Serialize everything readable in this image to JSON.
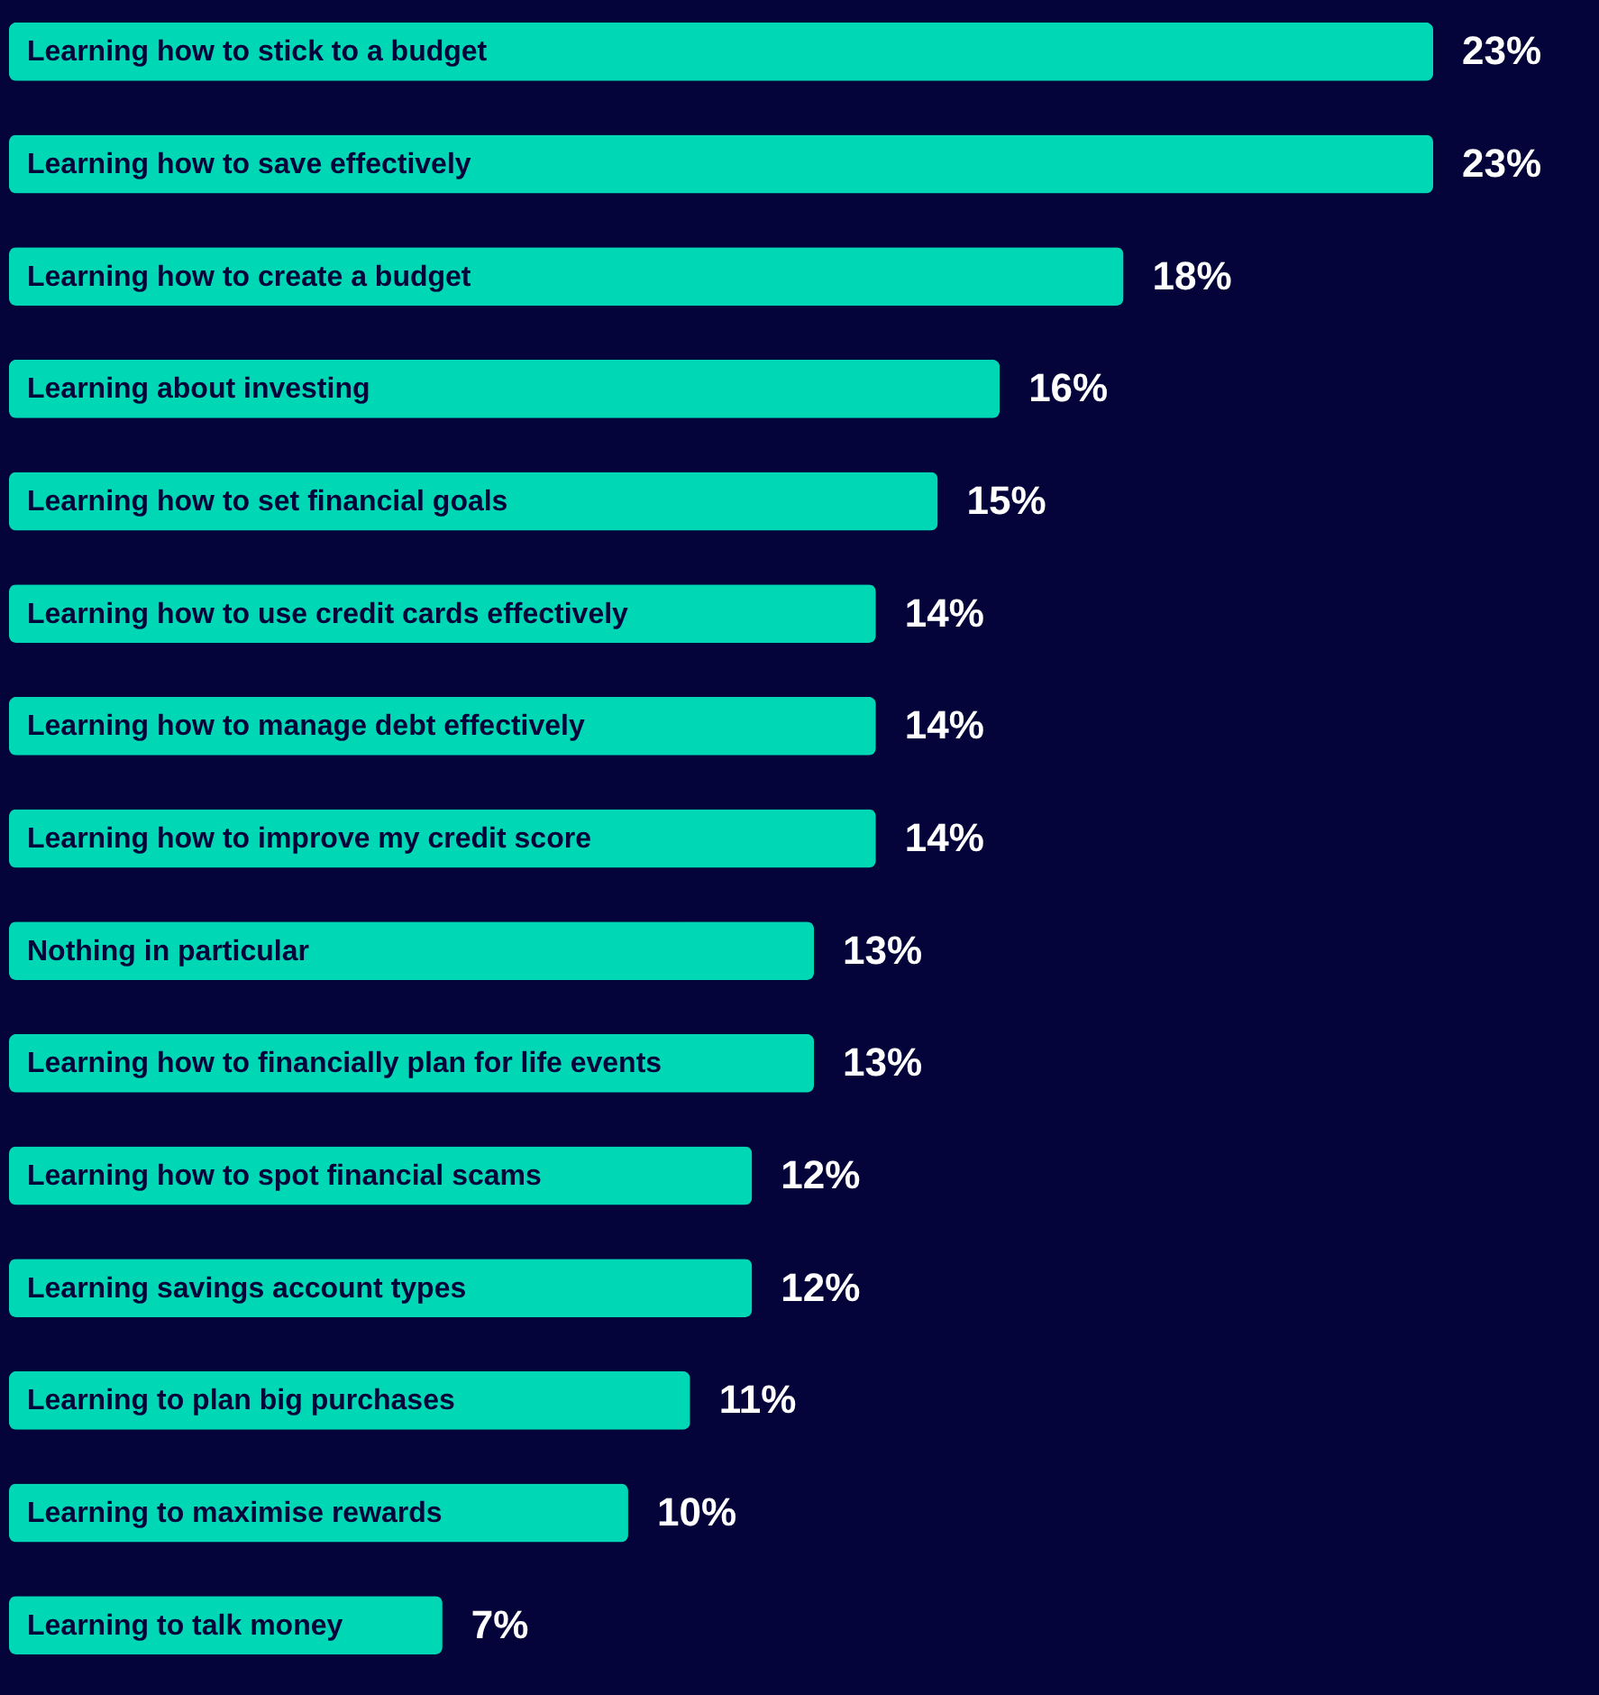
{
  "chart_data": {
    "type": "bar",
    "orientation": "horizontal",
    "color": "#00d7b4",
    "categories": [
      "Learning how to stick to a budget",
      "Learning how to save effectively",
      "Learning how to create a budget",
      "Learning about investing",
      "Learning how to set financial goals",
      "Learning how to use credit cards effectively",
      "Learning how to manage debt effectively",
      "Learning how to improve my credit score",
      "Nothing in particular",
      "Learning how to financially plan for life events",
      "Learning how to spot financial scams",
      "Learning savings account types",
      "Learning to plan big purchases",
      "Learning to maximise rewards",
      "Learning to talk money"
    ],
    "values": [
      23,
      23,
      18,
      16,
      15,
      14,
      14,
      14,
      13,
      13,
      12,
      12,
      11,
      10,
      7
    ],
    "value_labels": [
      "23%",
      "23%",
      "18%",
      "16%",
      "15%",
      "14%",
      "14%",
      "14%",
      "13%",
      "13%",
      "12%",
      "12%",
      "11%",
      "10%",
      "7%"
    ]
  }
}
